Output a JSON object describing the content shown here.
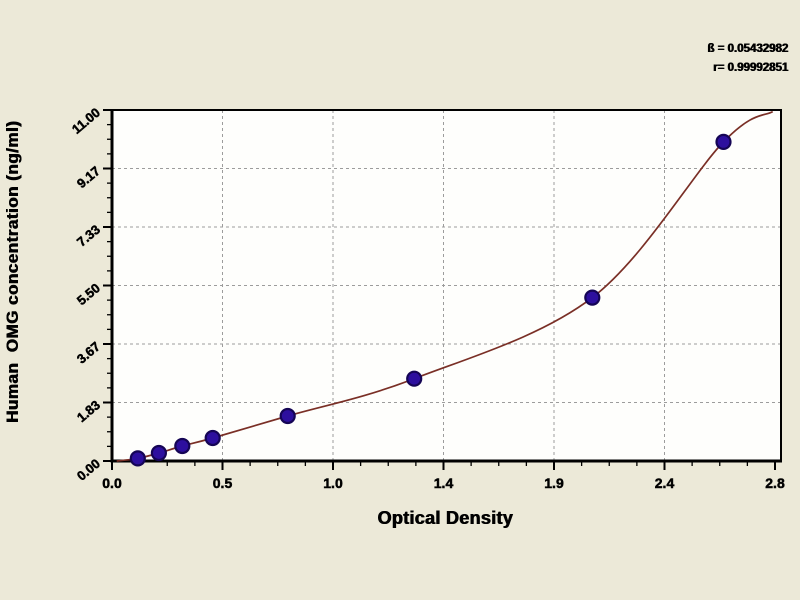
{
  "stats": {
    "line1": "ß = 0.05432982",
    "line2": "r= 0.99992851"
  },
  "chart_data": {
    "type": "scatter",
    "title": "",
    "xlabel": "Optical Density",
    "ylabel": "Human  OMG concentration (ng/ml)",
    "xlim": [
      0,
      2.83
    ],
    "ylim": [
      0,
      11
    ],
    "x_tick_labels": [
      "0.0",
      "0.5",
      "1.0",
      "1.4",
      "1.9",
      "2.4",
      "2.8"
    ],
    "y_tick_labels": [
      "0.00",
      "1.83",
      "3.67",
      "5.50",
      "7.33",
      "9.17",
      "11.00"
    ],
    "minor_ticks_per_interval": 3,
    "grid": "dashed",
    "legend": "none",
    "points": [
      {
        "od": 0.11,
        "conc": 0.08
      },
      {
        "od": 0.2,
        "conc": 0.25
      },
      {
        "od": 0.3,
        "conc": 0.47
      },
      {
        "od": 0.43,
        "conc": 0.72
      },
      {
        "od": 0.75,
        "conc": 1.41
      },
      {
        "od": 1.29,
        "conc": 2.58
      },
      {
        "od": 2.05,
        "conc": 5.12
      },
      {
        "od": 2.61,
        "conc": 10.0
      }
    ],
    "curve_extension": {
      "start": {
        "od": 0.02,
        "conc": 0.0
      },
      "end": {
        "od": 2.82,
        "conc": 10.95
      }
    },
    "colors": {
      "page_bg": "#ECE9D8",
      "plot_bg": "#FEFEFC",
      "grid": "#9C9C9C",
      "curve": "#7A2F26",
      "point_fill": "#2D0F9E",
      "point_stroke": "#150555",
      "axis": "#000000"
    }
  }
}
